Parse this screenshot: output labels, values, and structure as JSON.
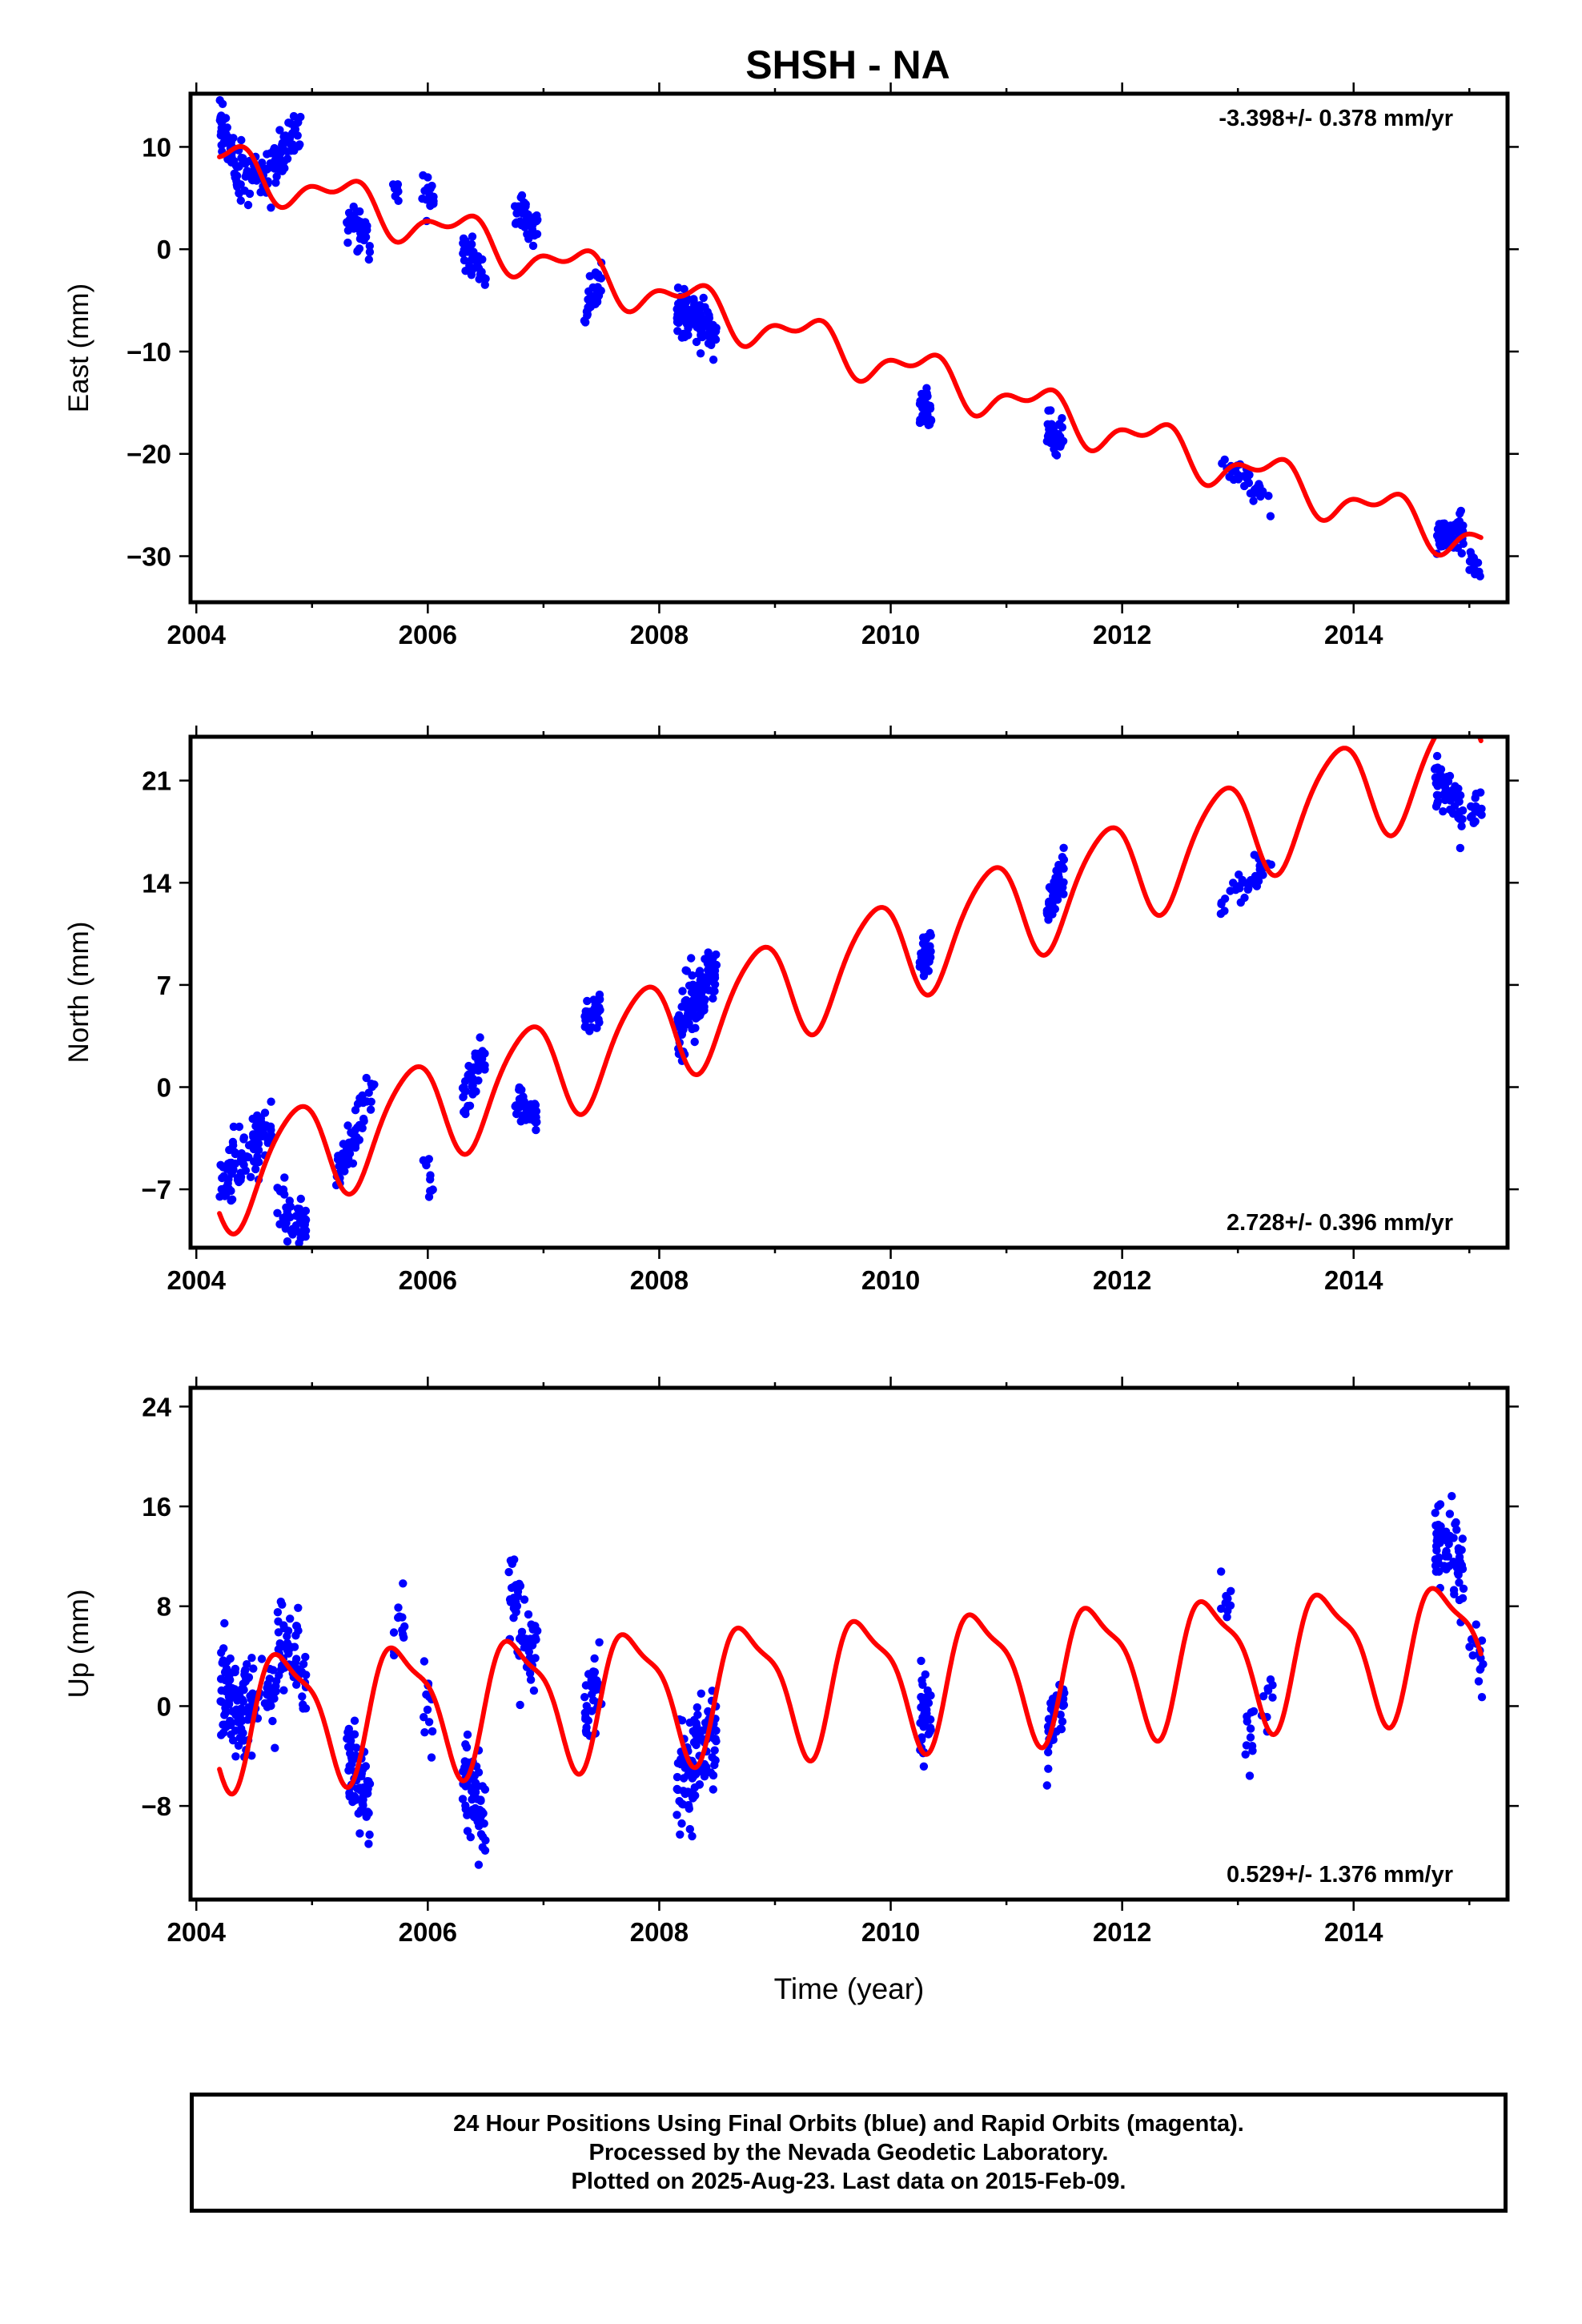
{
  "colors": {
    "final_orbits": "#0000ff",
    "model_fit": "#ff0000",
    "frame": "#000000"
  },
  "title": "SHSH - NA",
  "chart_data": [
    {
      "type": "scatter",
      "title": "SHSH - NA",
      "xlabel": "",
      "ylabel": "East (mm)",
      "xlim": [
        2003.95,
        2015.33
      ],
      "ylim": [
        -34.5,
        15.2
      ],
      "xticks": [
        2004,
        2006,
        2008,
        2010,
        2012,
        2014
      ],
      "xtick_labels": [
        "2004",
        "2006",
        "2008",
        "2010",
        "2012",
        "2014"
      ],
      "yticks": [
        10,
        0,
        -10,
        -20,
        -30
      ],
      "ytick_labels": [
        "10",
        "0",
        "−10",
        "−20",
        "−30"
      ],
      "rate_text": "-3.398+/- 0.378 mm/yr",
      "rate_position": "top-right",
      "grid": false,
      "model": {
        "start": 2004.2,
        "end": 2015.1,
        "ref_time": 2004.2,
        "ref_value": 8.5,
        "rate": -3.398,
        "amp_annual": 1.8,
        "phase_annual": -0.25,
        "amp_semiannual": 1.0,
        "phase_semiannual": 2.2
      },
      "clusters": [
        {
          "start": 2004.2,
          "end": 2004.35,
          "y0": 13,
          "y1": 8,
          "spread": 1.8,
          "count": 50
        },
        {
          "start": 2004.35,
          "end": 2004.7,
          "y0": 7,
          "y1": 8,
          "spread": 1.8,
          "count": 70
        },
        {
          "start": 2004.7,
          "end": 2004.9,
          "y0": 9,
          "y1": 12,
          "spread": 1.8,
          "count": 40
        },
        {
          "start": 2005.3,
          "end": 2005.5,
          "y0": 3,
          "y1": 1,
          "spread": 1.8,
          "count": 45
        },
        {
          "start": 2005.7,
          "end": 2005.75,
          "y0": 6,
          "y1": 6,
          "spread": 1.2,
          "count": 8
        },
        {
          "start": 2005.95,
          "end": 2006.05,
          "y0": 6,
          "y1": 5,
          "spread": 1.4,
          "count": 14
        },
        {
          "start": 2006.3,
          "end": 2006.5,
          "y0": 0,
          "y1": -2,
          "spread": 1.5,
          "count": 35
        },
        {
          "start": 2006.75,
          "end": 2006.95,
          "y0": 4,
          "y1": 2,
          "spread": 1.5,
          "count": 40
        },
        {
          "start": 2007.35,
          "end": 2007.5,
          "y0": -6.5,
          "y1": -3,
          "spread": 1.5,
          "count": 30
        },
        {
          "start": 2008.15,
          "end": 2008.5,
          "y0": -6,
          "y1": -8,
          "spread": 1.8,
          "count": 110
        },
        {
          "start": 2010.25,
          "end": 2010.35,
          "y0": -15,
          "y1": -16,
          "spread": 1.6,
          "count": 35
        },
        {
          "start": 2011.35,
          "end": 2011.5,
          "y0": -18,
          "y1": -19,
          "spread": 1.6,
          "count": 40
        },
        {
          "start": 2012.85,
          "end": 2013.3,
          "y0": -21,
          "y1": -25,
          "spread": 1.2,
          "count": 35
        },
        {
          "start": 2014.7,
          "end": 2014.95,
          "y0": -28,
          "y1": -28,
          "spread": 1.5,
          "count": 55
        },
        {
          "start": 2015.0,
          "end": 2015.12,
          "y0": -30,
          "y1": -32,
          "spread": 1.0,
          "count": 15
        }
      ]
    },
    {
      "type": "scatter",
      "title": "",
      "xlabel": "",
      "ylabel": "North (mm)",
      "xlim": [
        2003.95,
        2015.33
      ],
      "ylim": [
        -11.0,
        24.0
      ],
      "xticks": [
        2004,
        2006,
        2008,
        2010,
        2012,
        2014
      ],
      "xtick_labels": [
        "2004",
        "2006",
        "2008",
        "2010",
        "2012",
        "2014"
      ],
      "yticks": [
        21,
        14,
        7,
        0,
        -7
      ],
      "ytick_labels": [
        "21",
        "14",
        "7",
        "0",
        "−7"
      ],
      "rate_text": "2.728+/- 0.396 mm/yr",
      "rate_position": "bottom-right",
      "grid": false,
      "model": {
        "start": 2004.2,
        "end": 2015.1,
        "ref_time": 2004.2,
        "ref_value": -6.5,
        "rate": 2.728,
        "amp_annual": 3.5,
        "phase_annual": -3.8,
        "amp_semiannual": 0.5,
        "phase_semiannual": 1.0
      },
      "clusters": [
        {
          "start": 2004.2,
          "end": 2004.4,
          "y0": -7,
          "y1": -5,
          "spread": 2.0,
          "count": 45
        },
        {
          "start": 2004.4,
          "end": 2004.65,
          "y0": -4,
          "y1": -3,
          "spread": 1.6,
          "count": 50
        },
        {
          "start": 2004.7,
          "end": 2004.95,
          "y0": -8,
          "y1": -10,
          "spread": 1.8,
          "count": 45
        },
        {
          "start": 2005.2,
          "end": 2005.45,
          "y0": -6,
          "y1": -2,
          "spread": 1.8,
          "count": 50
        },
        {
          "start": 2005.45,
          "end": 2005.55,
          "y0": -1,
          "y1": 0,
          "spread": 1.4,
          "count": 10
        },
        {
          "start": 2005.95,
          "end": 2006.05,
          "y0": -5,
          "y1": -6.5,
          "spread": 1.2,
          "count": 10
        },
        {
          "start": 2006.3,
          "end": 2006.5,
          "y0": -1,
          "y1": 2,
          "spread": 1.6,
          "count": 40
        },
        {
          "start": 2006.75,
          "end": 2006.95,
          "y0": -1,
          "y1": -2,
          "spread": 1.2,
          "count": 40
        },
        {
          "start": 2007.35,
          "end": 2007.5,
          "y0": 4.5,
          "y1": 5.5,
          "spread": 1.2,
          "count": 30
        },
        {
          "start": 2008.15,
          "end": 2008.5,
          "y0": 4,
          "y1": 8.5,
          "spread": 2.0,
          "count": 110
        },
        {
          "start": 2010.25,
          "end": 2010.35,
          "y0": 8,
          "y1": 10,
          "spread": 1.4,
          "count": 35
        },
        {
          "start": 2011.35,
          "end": 2011.5,
          "y0": 12,
          "y1": 15,
          "spread": 1.5,
          "count": 40
        },
        {
          "start": 2012.85,
          "end": 2013.3,
          "y0": 13,
          "y1": 15,
          "spread": 1.0,
          "count": 35
        },
        {
          "start": 2014.7,
          "end": 2014.95,
          "y0": 21,
          "y1": 19,
          "spread": 1.5,
          "count": 55
        },
        {
          "start": 2015.0,
          "end": 2015.12,
          "y0": 19,
          "y1": 19,
          "spread": 1.0,
          "count": 15
        }
      ]
    },
    {
      "type": "scatter",
      "title": "",
      "xlabel": "Time (year)",
      "ylabel": "Up (mm)",
      "xlim": [
        2003.95,
        2015.33
      ],
      "ylim": [
        -15.5,
        25.5
      ],
      "xticks": [
        2004,
        2006,
        2008,
        2010,
        2012,
        2014
      ],
      "xtick_labels": [
        "2004",
        "2006",
        "2008",
        "2010",
        "2012",
        "2014"
      ],
      "yticks": [
        24,
        16,
        8,
        0,
        -8
      ],
      "ytick_labels": [
        "24",
        "16",
        "8",
        "0",
        "−8"
      ],
      "rate_text": "0.529+/- 1.376 mm/yr",
      "rate_position": "bottom-right",
      "grid": false,
      "model": {
        "start": 2004.2,
        "end": 2015.1,
        "ref_time": 2004.2,
        "ref_value": -0.8,
        "rate": 0.529,
        "amp_annual": 5.0,
        "phase_annual": -3.3,
        "amp_semiannual": 1.5,
        "phase_semiannual": 0.5
      },
      "clusters": [
        {
          "start": 2004.2,
          "end": 2004.5,
          "y0": 2,
          "y1": -1,
          "spread": 3.5,
          "count": 110
        },
        {
          "start": 2004.5,
          "end": 2004.7,
          "y0": 0,
          "y1": 2,
          "spread": 3.0,
          "count": 25
        },
        {
          "start": 2004.7,
          "end": 2004.95,
          "y0": 6,
          "y1": 2,
          "spread": 3.0,
          "count": 55
        },
        {
          "start": 2005.3,
          "end": 2005.5,
          "y0": -4,
          "y1": -8,
          "spread": 3.0,
          "count": 65
        },
        {
          "start": 2005.7,
          "end": 2005.8,
          "y0": 5,
          "y1": 7,
          "spread": 2.5,
          "count": 12
        },
        {
          "start": 2005.95,
          "end": 2006.05,
          "y0": 3,
          "y1": -3,
          "spread": 2.5,
          "count": 12
        },
        {
          "start": 2006.3,
          "end": 2006.5,
          "y0": -5,
          "y1": -9,
          "spread": 3.0,
          "count": 65
        },
        {
          "start": 2006.7,
          "end": 2006.95,
          "y0": 9,
          "y1": 4,
          "spread": 3.5,
          "count": 60
        },
        {
          "start": 2007.35,
          "end": 2007.5,
          "y0": 0,
          "y1": 2,
          "spread": 2.5,
          "count": 35
        },
        {
          "start": 2008.15,
          "end": 2008.5,
          "y0": -6,
          "y1": -2,
          "spread": 3.5,
          "count": 120
        },
        {
          "start": 2010.25,
          "end": 2010.35,
          "y0": -2,
          "y1": 0,
          "spread": 3.0,
          "count": 35
        },
        {
          "start": 2011.35,
          "end": 2011.5,
          "y0": -2,
          "y1": 0,
          "spread": 2.8,
          "count": 40
        },
        {
          "start": 2012.85,
          "end": 2012.95,
          "y0": 8,
          "y1": 8,
          "spread": 2.0,
          "count": 10
        },
        {
          "start": 2013.05,
          "end": 2013.3,
          "y0": -3,
          "y1": 1,
          "spread": 2.0,
          "count": 20
        },
        {
          "start": 2014.7,
          "end": 2014.95,
          "y0": 14,
          "y1": 11,
          "spread": 3.0,
          "count": 65
        },
        {
          "start": 2015.0,
          "end": 2015.12,
          "y0": 5,
          "y1": 3,
          "spread": 2.0,
          "count": 15
        }
      ]
    }
  ],
  "footer": {
    "line1": "24 Hour Positions Using Final Orbits (blue) and Rapid Orbits (magenta).",
    "line2": "Processed by the Nevada Geodetic Laboratory.",
    "line3": "Plotted on 2025-Aug-23. Last data on 2015-Feb-09."
  }
}
